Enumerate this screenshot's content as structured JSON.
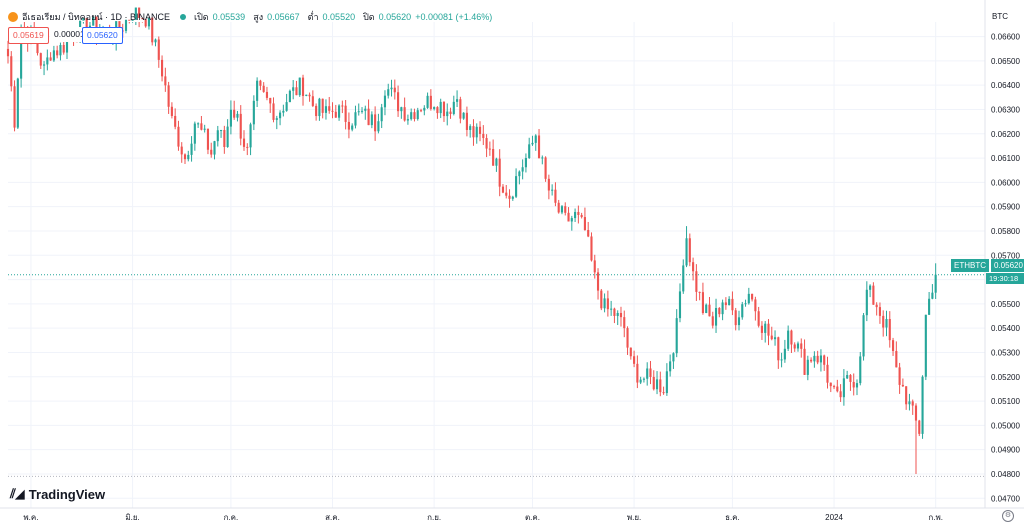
{
  "header": {
    "symbol_title": "อีเธอเรียม / บิทคอยน์ · 1D · BINANCE",
    "open_label": "เปิด",
    "open_value": "0.05539",
    "high_label": "สูง",
    "high_value": "0.05667",
    "low_label": "ต่ำ",
    "low_value": "0.05520",
    "close_label": "ปิด",
    "close_value": "0.05620",
    "change_value": "+0.00081 (+1.46%)"
  },
  "trade": {
    "sell_price": "0.05619",
    "spread": "0.00001",
    "buy_price": "0.05620"
  },
  "axis": {
    "currency": "BTC",
    "last_symbol": "ETHBTC",
    "last_price": "0.05620",
    "countdown": "19:30:18"
  },
  "branding": {
    "logo_text": "TradingView"
  },
  "colors": {
    "up": "#26a69a",
    "down": "#ef5350",
    "grid": "#f0f3fa",
    "axis_text": "#131722"
  },
  "icons": {
    "symbol": "bitcoin-icon",
    "market_status": "status-dot-icon",
    "settings": "gear-icon"
  },
  "chart_data": {
    "type": "candlestick",
    "series_name": "ETHBTC",
    "ylim": [
      0.0466,
      0.0666
    ],
    "y_ticks": [
      "0.06600",
      "0.06500",
      "0.06400",
      "0.06300",
      "0.06200",
      "0.06100",
      "0.06000",
      "0.05900",
      "0.05800",
      "0.05700",
      "0.05600",
      "0.05500",
      "0.05400",
      "0.05300",
      "0.05200",
      "0.05100",
      "0.05000",
      "0.04900",
      "0.04800",
      "0.04700"
    ],
    "x_ticks": [
      "พ.ค.",
      "มิ.ย.",
      "ก.ค.",
      "ส.ค.",
      "ก.ย.",
      "ต.ค.",
      "พ.ย.",
      "ธ.ค.",
      "2024",
      "ก.พ."
    ],
    "x_tick_day_index": [
      7,
      38,
      68,
      99,
      130,
      160,
      191,
      221,
      252,
      283
    ],
    "current_price": 0.0562,
    "low_reference_line": 0.0479,
    "keypoints_close": [
      [
        0,
        0.0652
      ],
      [
        2,
        0.0626
      ],
      [
        4,
        0.0664
      ],
      [
        8,
        0.0658
      ],
      [
        11,
        0.0646
      ],
      [
        13,
        0.0654
      ],
      [
        16,
        0.0655
      ],
      [
        20,
        0.0661
      ],
      [
        25,
        0.0665
      ],
      [
        31,
        0.066
      ],
      [
        34,
        0.0663
      ],
      [
        38,
        0.067
      ],
      [
        42,
        0.0668
      ],
      [
        44,
        0.066
      ],
      [
        47,
        0.0646
      ],
      [
        50,
        0.0625
      ],
      [
        52,
        0.0618
      ],
      [
        54,
        0.061
      ],
      [
        57,
        0.0625
      ],
      [
        60,
        0.0618
      ],
      [
        62,
        0.0612
      ],
      [
        64,
        0.0622
      ],
      [
        66,
        0.0615
      ],
      [
        68,
        0.0632
      ],
      [
        70,
        0.0626
      ],
      [
        73,
        0.0612
      ],
      [
        76,
        0.0638
      ],
      [
        80,
        0.0632
      ],
      [
        82,
        0.0628
      ],
      [
        86,
        0.0636
      ],
      [
        90,
        0.064
      ],
      [
        93,
        0.0632
      ],
      [
        97,
        0.0628
      ],
      [
        100,
        0.063
      ],
      [
        104,
        0.0626
      ],
      [
        108,
        0.0628
      ],
      [
        112,
        0.0624
      ],
      [
        115,
        0.064
      ],
      [
        118,
        0.0634
      ],
      [
        122,
        0.0628
      ],
      [
        126,
        0.0632
      ],
      [
        130,
        0.0634
      ],
      [
        134,
        0.063
      ],
      [
        137,
        0.0635
      ],
      [
        140,
        0.0622
      ],
      [
        144,
        0.0618
      ],
      [
        147,
        0.0615
      ],
      [
        150,
        0.0602
      ],
      [
        153,
        0.0595
      ],
      [
        156,
        0.0605
      ],
      [
        159,
        0.0612
      ],
      [
        161,
        0.062
      ],
      [
        164,
        0.06
      ],
      [
        167,
        0.059
      ],
      [
        170,
        0.0584
      ],
      [
        173,
        0.0586
      ],
      [
        176,
        0.058
      ],
      [
        179,
        0.056
      ],
      [
        182,
        0.0548
      ],
      [
        185,
        0.0546
      ],
      [
        188,
        0.054
      ],
      [
        190,
        0.0525
      ],
      [
        193,
        0.052
      ],
      [
        197,
        0.0518
      ],
      [
        200,
        0.0516
      ],
      [
        204,
        0.054
      ],
      [
        206,
        0.057
      ],
      [
        207,
        0.0578
      ],
      [
        209,
        0.0562
      ],
      [
        212,
        0.0548
      ],
      [
        215,
        0.0542
      ],
      [
        218,
        0.0552
      ],
      [
        222,
        0.0545
      ],
      [
        226,
        0.0555
      ],
      [
        230,
        0.0542
      ],
      [
        233,
        0.0535
      ],
      [
        236,
        0.0528
      ],
      [
        238,
        0.054
      ],
      [
        240,
        0.0535
      ],
      [
        243,
        0.0525
      ],
      [
        246,
        0.053
      ],
      [
        249,
        0.0525
      ],
      [
        251,
        0.0515
      ],
      [
        253,
        0.051
      ],
      [
        256,
        0.0518
      ],
      [
        259,
        0.052
      ],
      [
        262,
        0.0555
      ],
      [
        265,
        0.055
      ],
      [
        268,
        0.054
      ],
      [
        271,
        0.0522
      ],
      [
        274,
        0.0512
      ],
      [
        276,
        0.0504
      ],
      [
        278,
        0.0498
      ],
      [
        280,
        0.0545
      ],
      [
        282,
        0.0558
      ],
      [
        283,
        0.0562
      ]
    ],
    "volatility": 0.0009
  }
}
